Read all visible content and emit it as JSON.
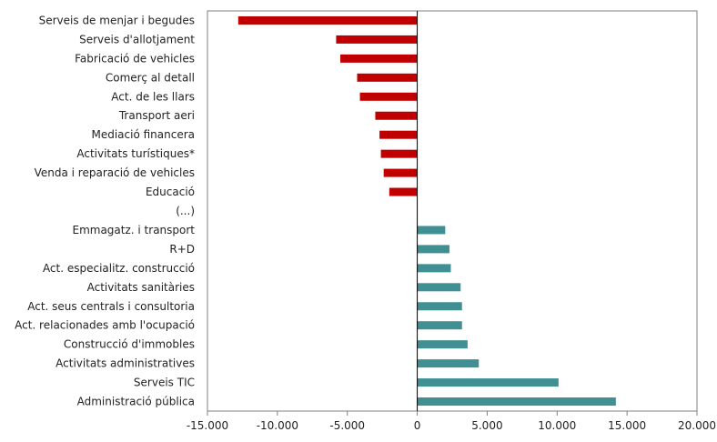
{
  "chart_data": {
    "type": "bar",
    "orientation": "horizontal",
    "title": "",
    "xlabel": "",
    "ylabel": "",
    "xlim": [
      -15000,
      20000
    ],
    "xticks": [
      -15000,
      -10000,
      -5000,
      0,
      5000,
      10000,
      15000,
      20000
    ],
    "xtick_labels": [
      "-15.000",
      "-10.000",
      "-5.000",
      "0",
      "5.000",
      "10.000",
      "15.000",
      "20.000"
    ],
    "grid": false,
    "legend": "none",
    "negative_color": "#c00000",
    "positive_color": "#3f8f93",
    "categories": [
      "Serveis de menjar i begudes",
      "Serveis d'allotjament",
      "Fabricació de vehicles",
      "Comerç al detall",
      "Act. de les llars",
      "Transport aeri",
      "Mediació financera",
      "Activitats turístiques*",
      "Venda i reparació de vehicles",
      "Educació",
      "(...)",
      "Emmagatz. i transport",
      "R+D",
      "Act. especialitz. construcció",
      "Activitats sanitàries",
      "Act. seus centrals i consultoria",
      "Act. relacionades amb l'ocupació",
      "Construcció d'immobles",
      "Activitats administratives",
      "Serveis TIC",
      "Administració pública"
    ],
    "values": [
      -12800,
      -5800,
      -5500,
      -4300,
      -4100,
      -3000,
      -2700,
      -2600,
      -2400,
      -2000,
      null,
      2000,
      2300,
      2400,
      3100,
      3200,
      3200,
      3600,
      4400,
      10100,
      14200
    ]
  }
}
